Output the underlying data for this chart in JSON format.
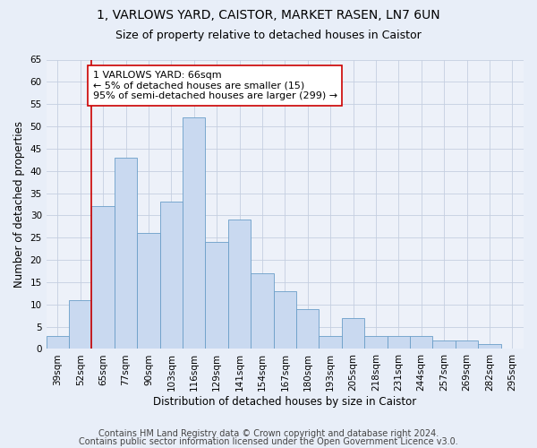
{
  "title1": "1, VARLOWS YARD, CAISTOR, MARKET RASEN, LN7 6UN",
  "title2": "Size of property relative to detached houses in Caistor",
  "xlabel": "Distribution of detached houses by size in Caistor",
  "ylabel": "Number of detached properties",
  "categories": [
    "39sqm",
    "52sqm",
    "65sqm",
    "77sqm",
    "90sqm",
    "103sqm",
    "116sqm",
    "129sqm",
    "141sqm",
    "154sqm",
    "167sqm",
    "180sqm",
    "193sqm",
    "205sqm",
    "218sqm",
    "231sqm",
    "244sqm",
    "257sqm",
    "269sqm",
    "282sqm",
    "295sqm"
  ],
  "values": [
    3,
    11,
    32,
    43,
    26,
    33,
    52,
    24,
    29,
    17,
    13,
    9,
    3,
    7,
    3,
    3,
    3,
    2,
    2,
    1,
    0
  ],
  "bar_color": "#c9d9f0",
  "bar_edge_color": "#6a9ec8",
  "vline_color": "#cc0000",
  "vline_x": 1.5,
  "annotation_text": "1 VARLOWS YARD: 66sqm\n← 5% of detached houses are smaller (15)\n95% of semi-detached houses are larger (299) →",
  "annotation_box_color": "#ffffff",
  "annotation_box_edge_color": "#cc0000",
  "ylim": [
    0,
    65
  ],
  "yticks": [
    0,
    5,
    10,
    15,
    20,
    25,
    30,
    35,
    40,
    45,
    50,
    55,
    60,
    65
  ],
  "footer1": "Contains HM Land Registry data © Crown copyright and database right 2024.",
  "footer2": "Contains public sector information licensed under the Open Government Licence v3.0.",
  "bg_color": "#e8eef8",
  "plot_bg_color": "#edf1f9",
  "grid_color": "#c5cfe0",
  "title1_fontsize": 10,
  "title2_fontsize": 9,
  "axis_label_fontsize": 8.5,
  "tick_fontsize": 7.5,
  "footer_fontsize": 7,
  "annot_fontsize": 8
}
